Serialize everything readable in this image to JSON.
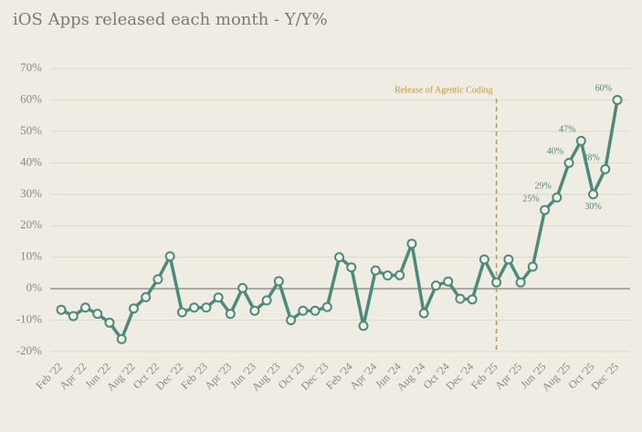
{
  "chart_data": {
    "type": "line",
    "title": "iOS Apps released each month - Y/Y%",
    "categories": [
      "Feb '22",
      null,
      "Apr '22",
      null,
      "Jun '22",
      null,
      "Aug '22",
      null,
      "Oct '22",
      null,
      "Dec '22",
      null,
      "Feb '23",
      null,
      "Apr '23",
      null,
      "Jun '23",
      null,
      "Aug '23",
      null,
      "Oct '23",
      null,
      "Dec '23",
      null,
      "Feb '24",
      null,
      "Apr '24",
      null,
      "Jun '24",
      null,
      "Aug '24",
      null,
      "Oct '24",
      null,
      "Dec '24",
      null,
      "Feb '25",
      null,
      "Apr '25",
      null,
      "Jun '25",
      null,
      "Aug '25",
      null,
      "Oct '25",
      null,
      "Dec '25"
    ],
    "series": [
      {
        "name": "Y/Y%",
        "color": "#4d8a7a",
        "values": [
          -6.7,
          -8.7,
          -6,
          -8,
          -10.8,
          -16,
          -6.3,
          -2.7,
          3,
          10.3,
          -7.5,
          -6,
          -6,
          -2.8,
          -8,
          0.2,
          -7,
          -3.7,
          2.4,
          -10,
          -7,
          -7,
          -5.8,
          10,
          6.8,
          -11.8,
          5.8,
          4.2,
          4.3,
          14.3,
          -7.8,
          1,
          2.3,
          -3.2,
          -3.4,
          9.3,
          2,
          9.3,
          2,
          7,
          25,
          29,
          40,
          47,
          30,
          38,
          60
        ],
        "value_labels": [
          null,
          null,
          null,
          null,
          null,
          null,
          null,
          null,
          null,
          null,
          null,
          null,
          null,
          null,
          null,
          null,
          null,
          null,
          null,
          null,
          null,
          null,
          null,
          null,
          null,
          null,
          null,
          null,
          null,
          null,
          null,
          null,
          null,
          null,
          null,
          null,
          null,
          null,
          null,
          null,
          "25%",
          "29%",
          "40%",
          "47%",
          "30%",
          "38%",
          "60%"
        ]
      }
    ],
    "ylim": [
      -20,
      70
    ],
    "yticks": [
      {
        "value": -20,
        "label": "-20%"
      },
      {
        "value": -10,
        "label": "-10%"
      },
      {
        "value": 0,
        "label": "0%"
      },
      {
        "value": 10,
        "label": "10%"
      },
      {
        "value": 20,
        "label": "20%"
      },
      {
        "value": 30,
        "label": "30%"
      },
      {
        "value": 40,
        "label": "40%"
      },
      {
        "value": 50,
        "label": "50%"
      },
      {
        "value": 60,
        "label": "60%"
      },
      {
        "value": 70,
        "label": "70%"
      }
    ],
    "grid": true,
    "annotation": {
      "text": "Release of Agentic Coding",
      "x": "Feb '25",
      "color": "#c9953a"
    }
  }
}
